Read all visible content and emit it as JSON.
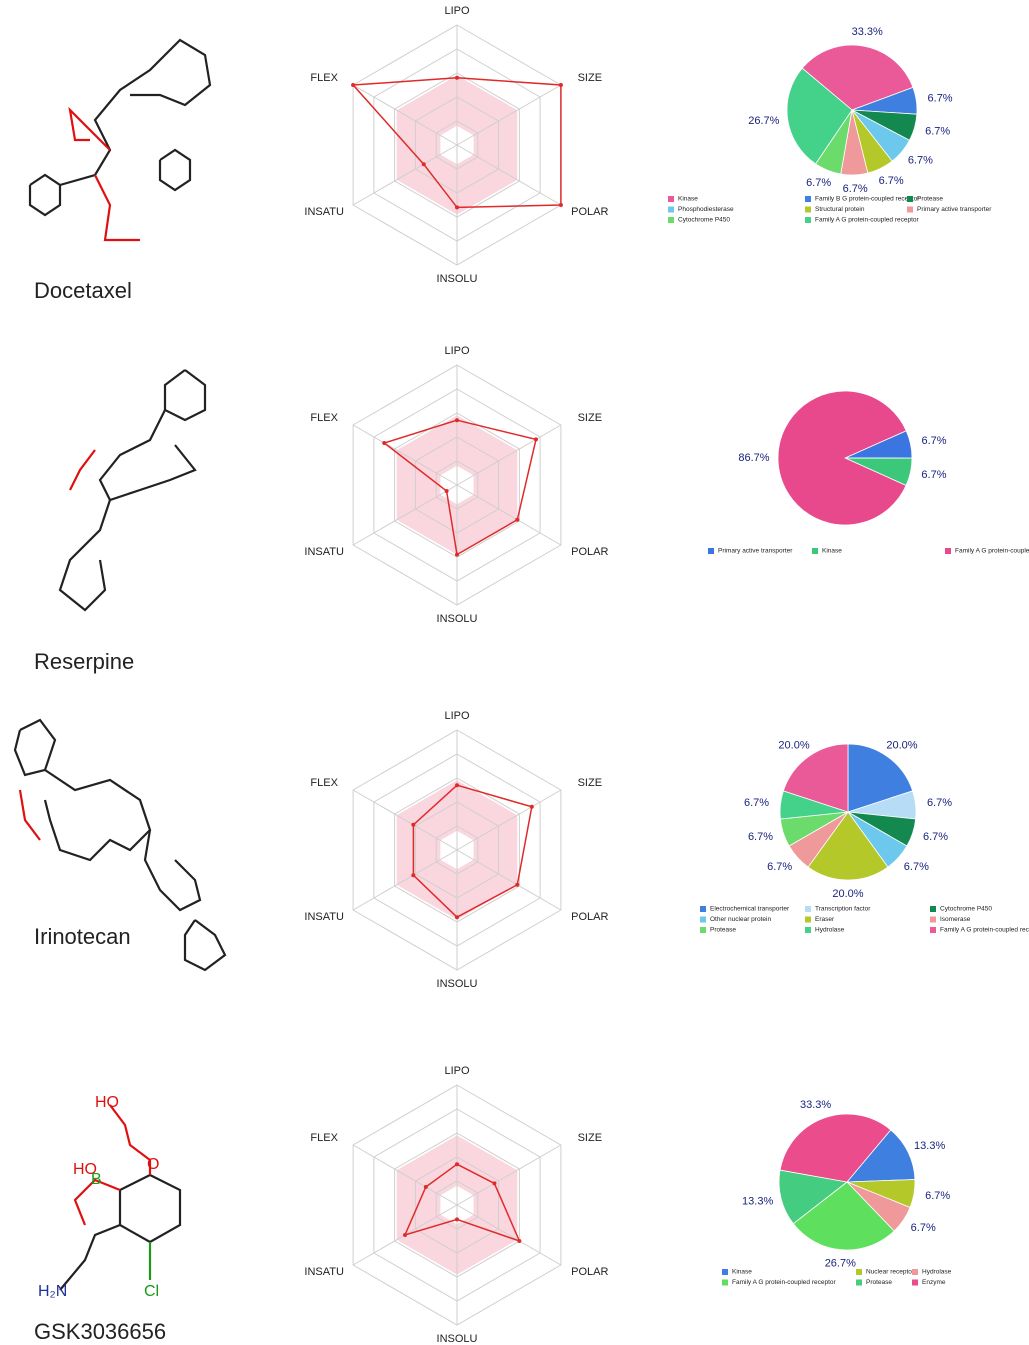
{
  "compounds": [
    "Docetaxel",
    "Reserpine",
    "Irinotecan",
    "GSK3036656"
  ],
  "gsk_atoms": [
    "HO",
    "HO",
    "B",
    "O",
    "Cl",
    "H₂N"
  ],
  "chart_data": [
    {
      "type": "radar",
      "categories": [
        "LIPO",
        "SIZE",
        "POLAR",
        "INSOLU",
        "INSATU",
        "FLEX"
      ],
      "values": [
        2.8,
        5,
        5,
        2.6,
        1.6,
        5
      ],
      "rlim": [
        0,
        5
      ],
      "rticks": [
        1,
        2,
        3,
        4,
        5
      ],
      "optimal_range": [
        0.8,
        2.9
      ],
      "color": "#e02a2a",
      "band_color": "#f8c8d4"
    },
    {
      "type": "pie",
      "categories": [
        "Kinase",
        "Family B G protein-coupled receptor",
        "Protease",
        "Phosphodiesterase",
        "Structural protein",
        "Primary active transporter",
        "Cytochrome P450",
        "Family A G protein-coupled receptor"
      ],
      "values": [
        33.3,
        6.7,
        6.7,
        6.7,
        6.7,
        6.7,
        6.7,
        26.7
      ],
      "value_labels": [
        "33.3%",
        "6.7%",
        "6.7%",
        "6.7%",
        "6.7%",
        "6.7%",
        "6.7%",
        "26.7%"
      ],
      "colors": [
        "#ea5a98",
        "#3f7fe0",
        "#13894f",
        "#6cc8ec",
        "#b5c829",
        "#f0999a",
        "#6bdb6b",
        "#44d18a"
      ]
    },
    {
      "type": "radar",
      "categories": [
        "LIPO",
        "SIZE",
        "POLAR",
        "INSOLU",
        "INSATU",
        "FLEX"
      ],
      "values": [
        2.7,
        3.8,
        2.9,
        2.9,
        0.5,
        3.5
      ],
      "rlim": [
        0,
        5
      ],
      "rticks": [
        1,
        2,
        3,
        4,
        5
      ],
      "optimal_range": [
        0.8,
        2.9
      ],
      "color": "#e02a2a",
      "band_color": "#f8c8d4"
    },
    {
      "type": "pie",
      "categories": [
        "Primary active transporter",
        "Kinase",
        "Family A G protein-coupled receptor"
      ],
      "values": [
        6.7,
        6.7,
        86.7
      ],
      "value_labels": [
        "6.7%",
        "6.7%",
        "86.7%"
      ],
      "colors": [
        "#3b76e0",
        "#3cc87a",
        "#e8488c"
      ]
    },
    {
      "type": "radar",
      "categories": [
        "LIPO",
        "SIZE",
        "POLAR",
        "INSOLU",
        "INSATU",
        "FLEX"
      ],
      "values": [
        2.7,
        3.6,
        2.9,
        2.8,
        2.1,
        2.1
      ],
      "rlim": [
        0,
        5
      ],
      "rticks": [
        1,
        2,
        3,
        4,
        5
      ],
      "optimal_range": [
        0.8,
        2.9
      ],
      "color": "#e02a2a",
      "band_color": "#f8c8d4"
    },
    {
      "type": "pie",
      "categories": [
        "Electrochemical transporter",
        "Transcription factor",
        "Cytochrome P450",
        "Other nuclear protein",
        "Eraser",
        "Isomerase",
        "Protease",
        "Hydrolase",
        "Family A G protein-coupled receptor"
      ],
      "values": [
        20.0,
        6.7,
        6.7,
        6.7,
        20.0,
        6.7,
        6.7,
        6.7,
        20.0
      ],
      "value_labels": [
        "20.0%",
        "6.7%",
        "6.7%",
        "6.7%",
        "20.0%",
        "6.7%",
        "6.7%",
        "6.7%",
        "20.0%"
      ],
      "colors": [
        "#3f7fe0",
        "#b7dcf5",
        "#13894f",
        "#6cc8ec",
        "#b5c829",
        "#f0999a",
        "#6bdb6b",
        "#44d18a",
        "#ea5a98"
      ]
    },
    {
      "type": "radar",
      "categories": [
        "LIPO",
        "SIZE",
        "POLAR",
        "INSOLU",
        "INSATU",
        "FLEX"
      ],
      "values": [
        1.7,
        1.8,
        3.0,
        0.6,
        2.5,
        1.5
      ],
      "rlim": [
        0,
        5
      ],
      "rticks": [
        1,
        2,
        3,
        4,
        5
      ],
      "optimal_range": [
        0.8,
        2.9
      ],
      "color": "#e02a2a",
      "band_color": "#f8c8d4"
    },
    {
      "type": "pie",
      "categories": [
        "Kinase",
        "Nuclear receptor",
        "Hydrolase",
        "Family A G protein-coupled receptor",
        "Protease",
        "Enzyme"
      ],
      "values": [
        13.3,
        6.7,
        6.7,
        26.7,
        13.3,
        33.3
      ],
      "value_labels": [
        "13.3%",
        "6.7%",
        "6.7%",
        "26.7%",
        "13.3%",
        "33.3%"
      ],
      "colors": [
        "#3f7fe0",
        "#b5c829",
        "#f0999a",
        "#5ee05e",
        "#44cc80",
        "#ea4c8c"
      ]
    }
  ]
}
